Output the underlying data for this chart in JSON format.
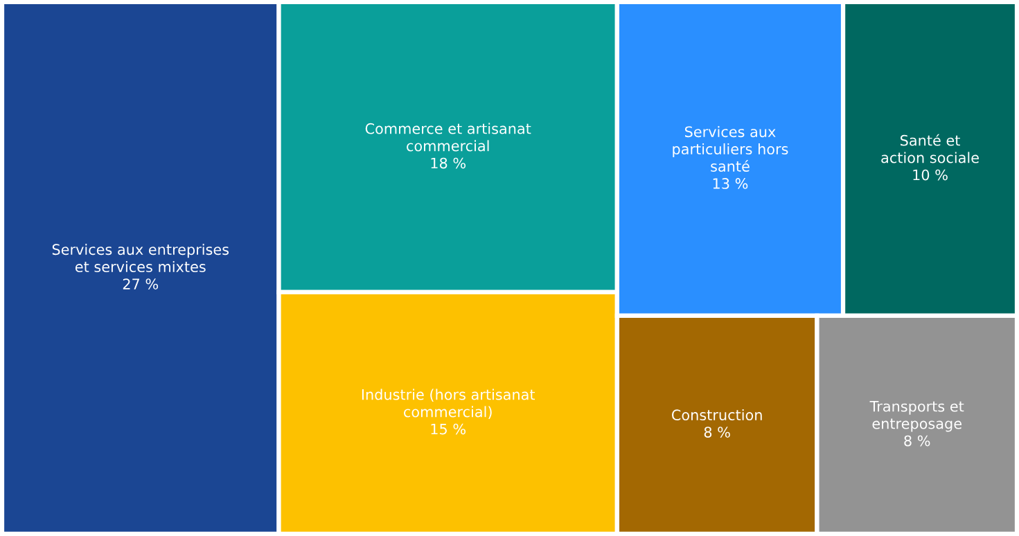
{
  "chart_data": {
    "type": "other",
    "categories": [
      "Services aux entreprises\net services mixtes",
      "Commerce et artisanat\ncommercial",
      "Industrie (hors artisanat\ncommercial)",
      "Services aux\nparticuliers hors\nsanté",
      "Santé et\naction sociale",
      "Construction",
      "Transports et\nentreposage"
    ],
    "values": [
      27,
      18,
      15,
      13,
      10,
      8,
      8
    ],
    "value_labels": [
      "27 %",
      "18 %",
      "15 %",
      "13 %",
      "10 %",
      "8 %",
      "8 %"
    ],
    "colors": [
      "#1b4693",
      "#0a9f9a",
      "#fdc100",
      "#2a8fff",
      "#006860",
      "#a36802",
      "#939393"
    ]
  }
}
